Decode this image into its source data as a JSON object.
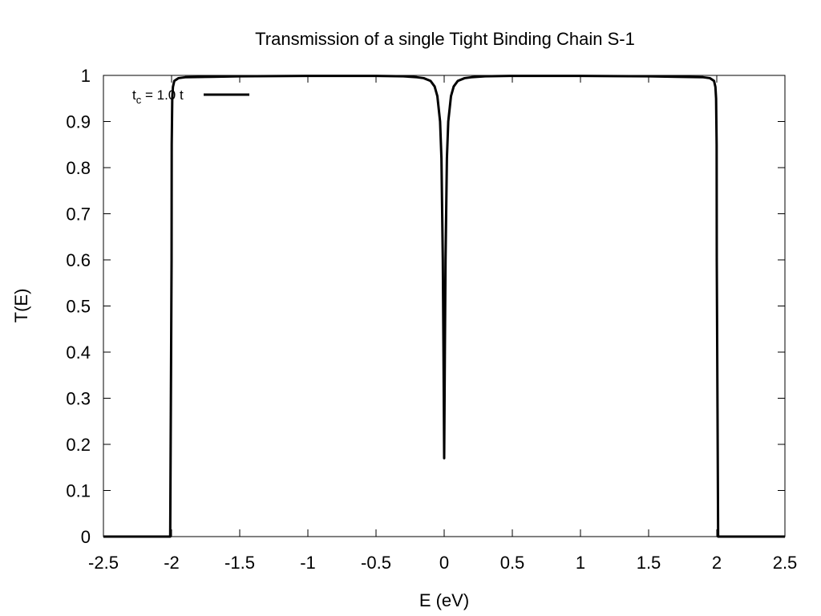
{
  "chart_data": {
    "type": "line",
    "title": "Transmission of a single Tight Binding Chain S-1",
    "xlabel": "E (eV)",
    "ylabel": "T(E)",
    "xlim": [
      -2.5,
      2.5
    ],
    "ylim": [
      0,
      1
    ],
    "x_ticks": [
      -2.5,
      -2,
      -1.5,
      -1,
      -0.5,
      0,
      0.5,
      1,
      1.5,
      2,
      2.5
    ],
    "x_tick_labels": [
      "-2.5",
      "-2",
      "-1.5",
      "-1",
      "-0.5",
      "0",
      "0.5",
      "1",
      "1.5",
      "2",
      "2.5"
    ],
    "y_ticks": [
      0,
      0.1,
      0.2,
      0.3,
      0.4,
      0.5,
      0.6,
      0.7,
      0.8,
      0.9,
      1
    ],
    "y_tick_labels": [
      "0",
      "0.1",
      "0.2",
      "0.3",
      "0.4",
      "0.5",
      "0.6",
      "0.7",
      "0.8",
      "0.9",
      "1"
    ],
    "grid": false,
    "legend": {
      "position": "top-left",
      "label_main": "t",
      "label_sub": "c",
      "label_rest": " = 1.0 t"
    },
    "series": [
      {
        "name": "tc = 1.0 t",
        "color": "#000000",
        "x": [
          -2.5,
          -2.01,
          -2.0,
          -1.999,
          -1.995,
          -1.99,
          -1.98,
          -1.95,
          -1.9,
          -1.7,
          -1.5,
          -1.0,
          -0.5,
          -0.3,
          -0.2,
          -0.15,
          -0.1,
          -0.07,
          -0.05,
          -0.03,
          -0.02,
          -0.01,
          -0.005,
          0.0,
          0.005,
          0.01,
          0.02,
          0.03,
          0.05,
          0.07,
          0.1,
          0.15,
          0.2,
          0.3,
          0.5,
          1.0,
          1.5,
          1.7,
          1.9,
          1.95,
          1.98,
          1.99,
          1.995,
          1.999,
          2.0,
          2.01,
          2.5
        ],
        "y": [
          0.0,
          0.0,
          0.6,
          0.85,
          0.95,
          0.975,
          0.988,
          0.994,
          0.996,
          0.997,
          0.998,
          0.999,
          0.999,
          0.998,
          0.996,
          0.994,
          0.988,
          0.976,
          0.955,
          0.9,
          0.82,
          0.6,
          0.4,
          0.17,
          0.4,
          0.6,
          0.82,
          0.9,
          0.955,
          0.976,
          0.988,
          0.994,
          0.996,
          0.998,
          0.999,
          0.999,
          0.998,
          0.997,
          0.996,
          0.994,
          0.988,
          0.975,
          0.95,
          0.85,
          0.6,
          0.0,
          0.0
        ]
      }
    ]
  }
}
